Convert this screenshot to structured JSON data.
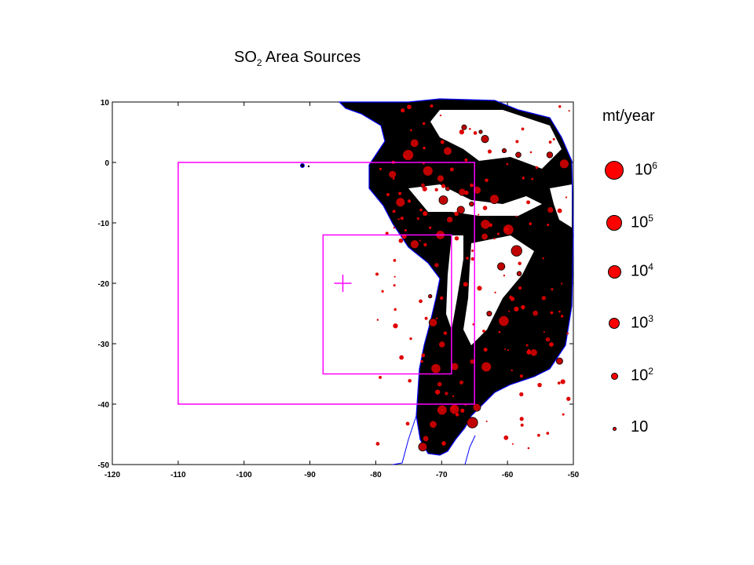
{
  "title": {
    "main": "SO",
    "subscript": "2",
    "rest": " Area Sources"
  },
  "axes": {
    "x_ticks": [
      "-120",
      "-110",
      "-100",
      "-90",
      "-80",
      "-70",
      "-60",
      "-50"
    ],
    "y_ticks": [
      "10",
      "0",
      "-10",
      "-20",
      "-30",
      "-40",
      "-50"
    ],
    "xlim": [
      -120,
      -50
    ],
    "ylim": [
      -50,
      10
    ]
  },
  "domains": [
    {
      "lon_min": -110,
      "lon_max": -65,
      "lat_min": -40,
      "lat_max": 0
    },
    {
      "lon_min": -88,
      "lon_max": -68.5,
      "lat_min": -35,
      "lat_max": -12
    }
  ],
  "marker": {
    "lon": -85,
    "lat": -20
  },
  "colors": {
    "frame": "#ff00ff",
    "dot": "#ff0000",
    "coast": "#0000ff",
    "land": "#000000"
  },
  "legend": {
    "unit": "mt/year",
    "items": [
      {
        "base": "10",
        "exp": "6"
      },
      {
        "base": "10",
        "exp": "5"
      },
      {
        "base": "10",
        "exp": "4"
      },
      {
        "base": "10",
        "exp": "3"
      },
      {
        "base": "10",
        "exp": "2"
      },
      {
        "base": "10",
        "exp": ""
      }
    ]
  }
}
